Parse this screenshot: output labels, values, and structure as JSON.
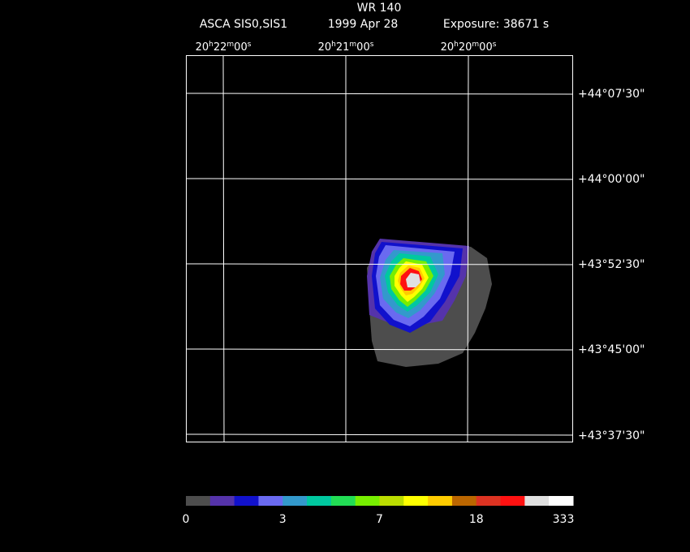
{
  "header": {
    "title": "WR 140",
    "instrument": "ASCA SIS0,SIS1",
    "date": "1999 Apr 28",
    "exposure": "Exposure: 38671 s"
  },
  "ra_units": [
    "h",
    "m",
    "s"
  ],
  "ra_labels": [
    [
      "20",
      "22",
      "00"
    ],
    [
      "20",
      "21",
      "00"
    ],
    [
      "20",
      "20",
      "00"
    ]
  ],
  "dec_labels": [
    "+44°07'30\"",
    "+44°00'00\"",
    "+43°52'30\"",
    "+43°45'00\"",
    "+43°37'30\""
  ],
  "colorbar": {
    "colors": [
      "#4d4d4d",
      "#5533aa",
      "#1111cc",
      "#6a6af0",
      "#3399cc",
      "#00c8a0",
      "#22dd55",
      "#77ee00",
      "#bbdd00",
      "#ffff00",
      "#ffcc00",
      "#bb6600",
      "#dd3322",
      "#ff1111",
      "#e0e0e0",
      "#ffffff"
    ],
    "labels": [
      "0",
      "3",
      "7",
      "18",
      "333"
    ]
  }
}
